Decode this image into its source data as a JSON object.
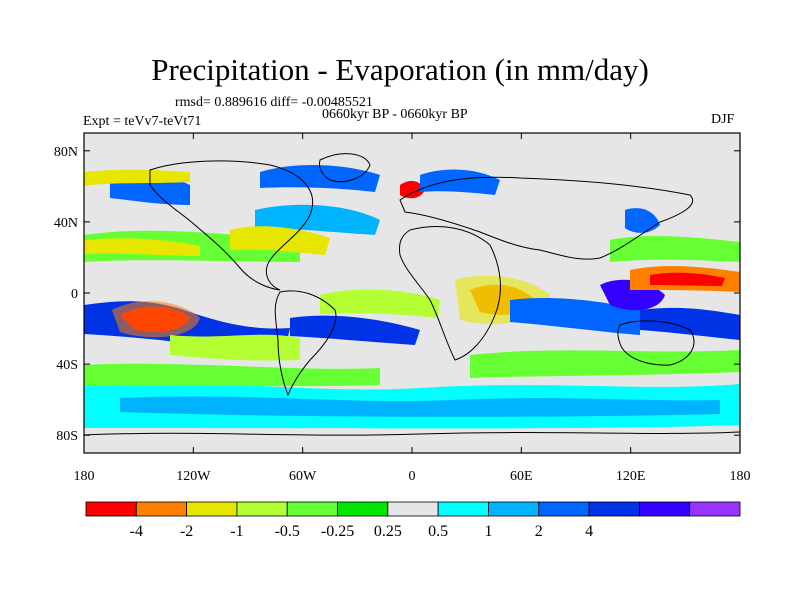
{
  "header": {
    "title": "Precipitation - Evaporation (in mm/day)",
    "stats": "rmsd= 0.889616 diff= -0.00485521",
    "period": "0660kyr BP - 0660kyr BP",
    "experiment": "Expt = teVv7-teVt71",
    "season": "DJF"
  },
  "map": {
    "lat_ticks": [
      "80N",
      "40N",
      "0",
      "40S",
      "80S"
    ],
    "lat_values": [
      80,
      40,
      0,
      -40,
      -80
    ],
    "lon_ticks": [
      "180",
      "120W",
      "60W",
      "0",
      "60E",
      "120E",
      "180"
    ],
    "lon_values": [
      -180,
      -120,
      -60,
      0,
      60,
      120,
      180
    ],
    "lat_range": [
      -90,
      90
    ],
    "lon_range": [
      -180,
      180
    ],
    "background_color": "#e6e6e6"
  },
  "colorbar": {
    "labels": [
      "-4",
      "-2",
      "-1",
      "-0.5",
      "-0.25",
      "0.25",
      "0.5",
      "1",
      "2",
      "4"
    ],
    "colors": [
      "#ff0000",
      "#ff8000",
      "#e6e600",
      "#b3ff33",
      "#66ff33",
      "#00e600",
      "#e6e6e6",
      "#00ffff",
      "#00b3ff",
      "#0066ff",
      "#0033e6",
      "#3300ff",
      "#9933ff"
    ]
  }
}
